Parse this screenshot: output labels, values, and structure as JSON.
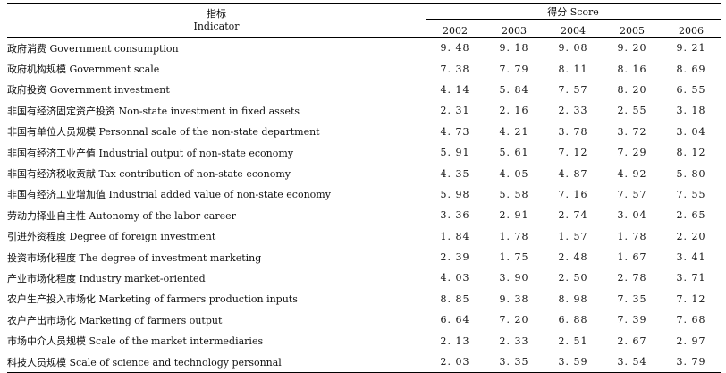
{
  "header": {
    "indicator_cn": "指标",
    "indicator_en": "Indicator",
    "score_label": "得分 Score",
    "years": [
      "2002",
      "2003",
      "2004",
      "2005",
      "2006"
    ]
  },
  "rows": [
    {
      "indicator": "政府消费 Government consumption",
      "values": [
        "9. 48",
        "9. 18",
        "9. 08",
        "9. 20",
        "9. 21"
      ]
    },
    {
      "indicator": "政府机构规模 Government scale",
      "values": [
        "7. 38",
        "7. 79",
        "8. 11",
        "8. 16",
        "8. 69"
      ]
    },
    {
      "indicator": "政府投资 Government investment",
      "values": [
        "4. 14",
        "5. 84",
        "7. 57",
        "8. 20",
        "6. 55"
      ]
    },
    {
      "indicator": "非国有经济固定资产投资 Non-state investment in fixed assets",
      "values": [
        "2. 31",
        "2. 16",
        "2. 33",
        "2. 55",
        "3. 18"
      ]
    },
    {
      "indicator": "非国有单位人员规模 Personnal scale of the non-state department",
      "values": [
        "4. 73",
        "4. 21",
        "3. 78",
        "3. 72",
        "3. 04"
      ]
    },
    {
      "indicator": "非国有经济工业产值 Industrial output of non-state economy",
      "values": [
        "5. 91",
        "5. 61",
        "7. 12",
        "7. 29",
        "8. 12"
      ]
    },
    {
      "indicator": "非国有经济税收贡献 Tax contribution of non-state economy",
      "values": [
        "4. 35",
        "4. 05",
        "4. 87",
        "4. 92",
        "5. 80"
      ]
    },
    {
      "indicator": "非国有经济工业增加值 Industrial added value of non-state economy",
      "values": [
        "5. 98",
        "5. 58",
        "7. 16",
        "7. 57",
        "7. 55"
      ]
    },
    {
      "indicator": "劳动力择业自主性 Autonomy of the labor career",
      "values": [
        "3. 36",
        "2. 91",
        "2. 74",
        "3. 04",
        "2. 65"
      ]
    },
    {
      "indicator": "引进外资程度 Degree of foreign investment",
      "values": [
        "1. 84",
        "1. 78",
        "1. 57",
        "1. 78",
        "2. 20"
      ]
    },
    {
      "indicator": "投资市场化程度 The degree of investment marketing",
      "values": [
        "2. 39",
        "1. 75",
        "2. 48",
        "1. 67",
        "3. 41"
      ]
    },
    {
      "indicator": "产业市场化程度 Industry market-oriented",
      "values": [
        "4. 03",
        "3. 90",
        "2. 50",
        "2. 78",
        "3. 71"
      ]
    },
    {
      "indicator": "农户生产投入市场化 Marketing of farmers production inputs",
      "values": [
        "8. 85",
        "9. 38",
        "8. 98",
        "7. 35",
        "7. 12"
      ]
    },
    {
      "indicator": "农户产出市场化 Marketing of farmers output",
      "values": [
        "6. 64",
        "7. 20",
        "6. 88",
        "7. 39",
        "7. 68"
      ]
    },
    {
      "indicator": "市场中介人员规模 Scale of the market intermediaries",
      "values": [
        "2. 13",
        "2. 33",
        "2. 51",
        "2. 67",
        "2. 97"
      ]
    },
    {
      "indicator": "科技人员规模 Scale of science and technology personnal",
      "values": [
        "2. 03",
        "3. 35",
        "3. 59",
        "3. 54",
        "3. 79"
      ]
    }
  ]
}
